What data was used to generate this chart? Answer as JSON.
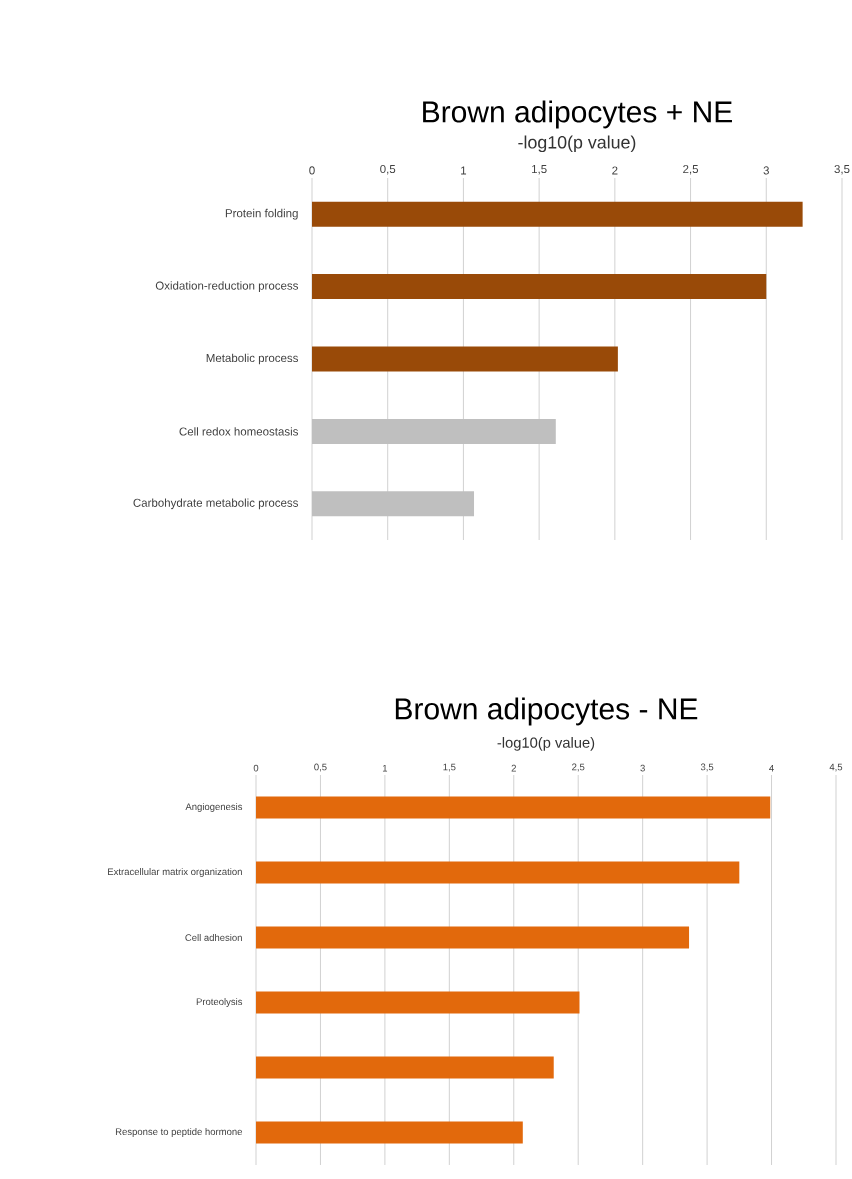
{
  "chart_data": [
    {
      "type": "bar",
      "orientation": "horizontal",
      "title": "Brown adipocytes + NE",
      "xlabel": "-log10(p value)",
      "categories": [
        "Protein folding",
        "Oxidation-reduction process",
        "Metabolic process",
        "Cell redox homeostasis",
        "Carbohydrate metabolic process"
      ],
      "values": [
        3.24,
        3.0,
        2.02,
        1.61,
        1.07
      ],
      "colors": [
        "#994a08",
        "#994a08",
        "#994a08",
        "#bfbfbf",
        "#bfbfbf"
      ],
      "xlim": [
        0,
        3.5
      ],
      "xticks": [
        0,
        {
          "value": 0.5,
          "label": "0,5"
        },
        1,
        {
          "value": 1.5,
          "label": "1,5"
        },
        2,
        {
          "value": 2.5,
          "label": "2,5"
        },
        3,
        {
          "value": 3.5,
          "label": "3,5"
        }
      ],
      "grid": "x"
    },
    {
      "type": "bar",
      "orientation": "horizontal",
      "title": "Brown adipocytes - NE",
      "xlabel": "-log10(p value)",
      "categories": [
        "Angiogenesis",
        "Extracellular matrix organization",
        "Cell adhesion",
        "Proteolysis",
        null,
        "Response to peptide hormone"
      ],
      "values": [
        3.99,
        3.75,
        3.36,
        2.51,
        2.31,
        2.07
      ],
      "color": "#e2690c",
      "xlim": [
        0,
        4.5
      ],
      "xticks": [
        0,
        {
          "value": 0.5,
          "label": "0,5"
        },
        1,
        {
          "value": 1.5,
          "label": "1,5"
        },
        2,
        {
          "value": 2.5,
          "label": "2,5"
        },
        3,
        {
          "value": 3.5,
          "label": "3,5"
        },
        4,
        {
          "value": 4.5,
          "label": "4,5"
        }
      ],
      "grid": "x"
    }
  ]
}
